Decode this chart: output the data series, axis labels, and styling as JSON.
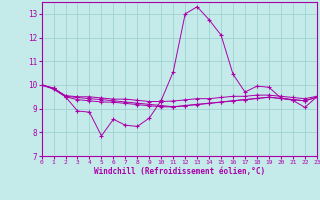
{
  "xlabel": "Windchill (Refroidissement éolien,°C)",
  "xlim": [
    0,
    23
  ],
  "ylim": [
    7,
    13.5
  ],
  "yticks": [
    7,
    8,
    9,
    10,
    11,
    12,
    13
  ],
  "xticks": [
    0,
    1,
    2,
    3,
    4,
    5,
    6,
    7,
    8,
    9,
    10,
    11,
    12,
    13,
    14,
    15,
    16,
    17,
    18,
    19,
    20,
    21,
    22,
    23
  ],
  "bg_color": "#c5eaea",
  "line_color": "#aa00aa",
  "grid_color": "#99cccc",
  "series": [
    [
      10.0,
      9.85,
      9.5,
      8.9,
      8.85,
      7.85,
      8.55,
      8.3,
      8.25,
      8.6,
      9.35,
      10.55,
      13.0,
      13.3,
      12.75,
      12.1,
      10.45,
      9.7,
      9.95,
      9.9,
      9.45,
      9.35,
      9.05,
      9.5
    ],
    [
      10.0,
      9.85,
      9.55,
      9.5,
      9.5,
      9.45,
      9.4,
      9.4,
      9.35,
      9.3,
      9.3,
      9.32,
      9.37,
      9.42,
      9.42,
      9.47,
      9.52,
      9.52,
      9.57,
      9.57,
      9.52,
      9.47,
      9.42,
      9.52
    ],
    [
      10.0,
      9.82,
      9.5,
      9.38,
      9.33,
      9.28,
      9.27,
      9.22,
      9.17,
      9.12,
      9.08,
      9.07,
      9.12,
      9.17,
      9.22,
      9.27,
      9.33,
      9.38,
      9.43,
      9.48,
      9.43,
      9.38,
      9.33,
      9.48
    ],
    [
      10.0,
      9.87,
      9.52,
      9.47,
      9.42,
      9.38,
      9.33,
      9.28,
      9.23,
      9.18,
      9.13,
      9.08,
      9.13,
      9.18,
      9.23,
      9.28,
      9.33,
      9.38,
      9.43,
      9.48,
      9.43,
      9.38,
      9.33,
      9.48
    ]
  ]
}
